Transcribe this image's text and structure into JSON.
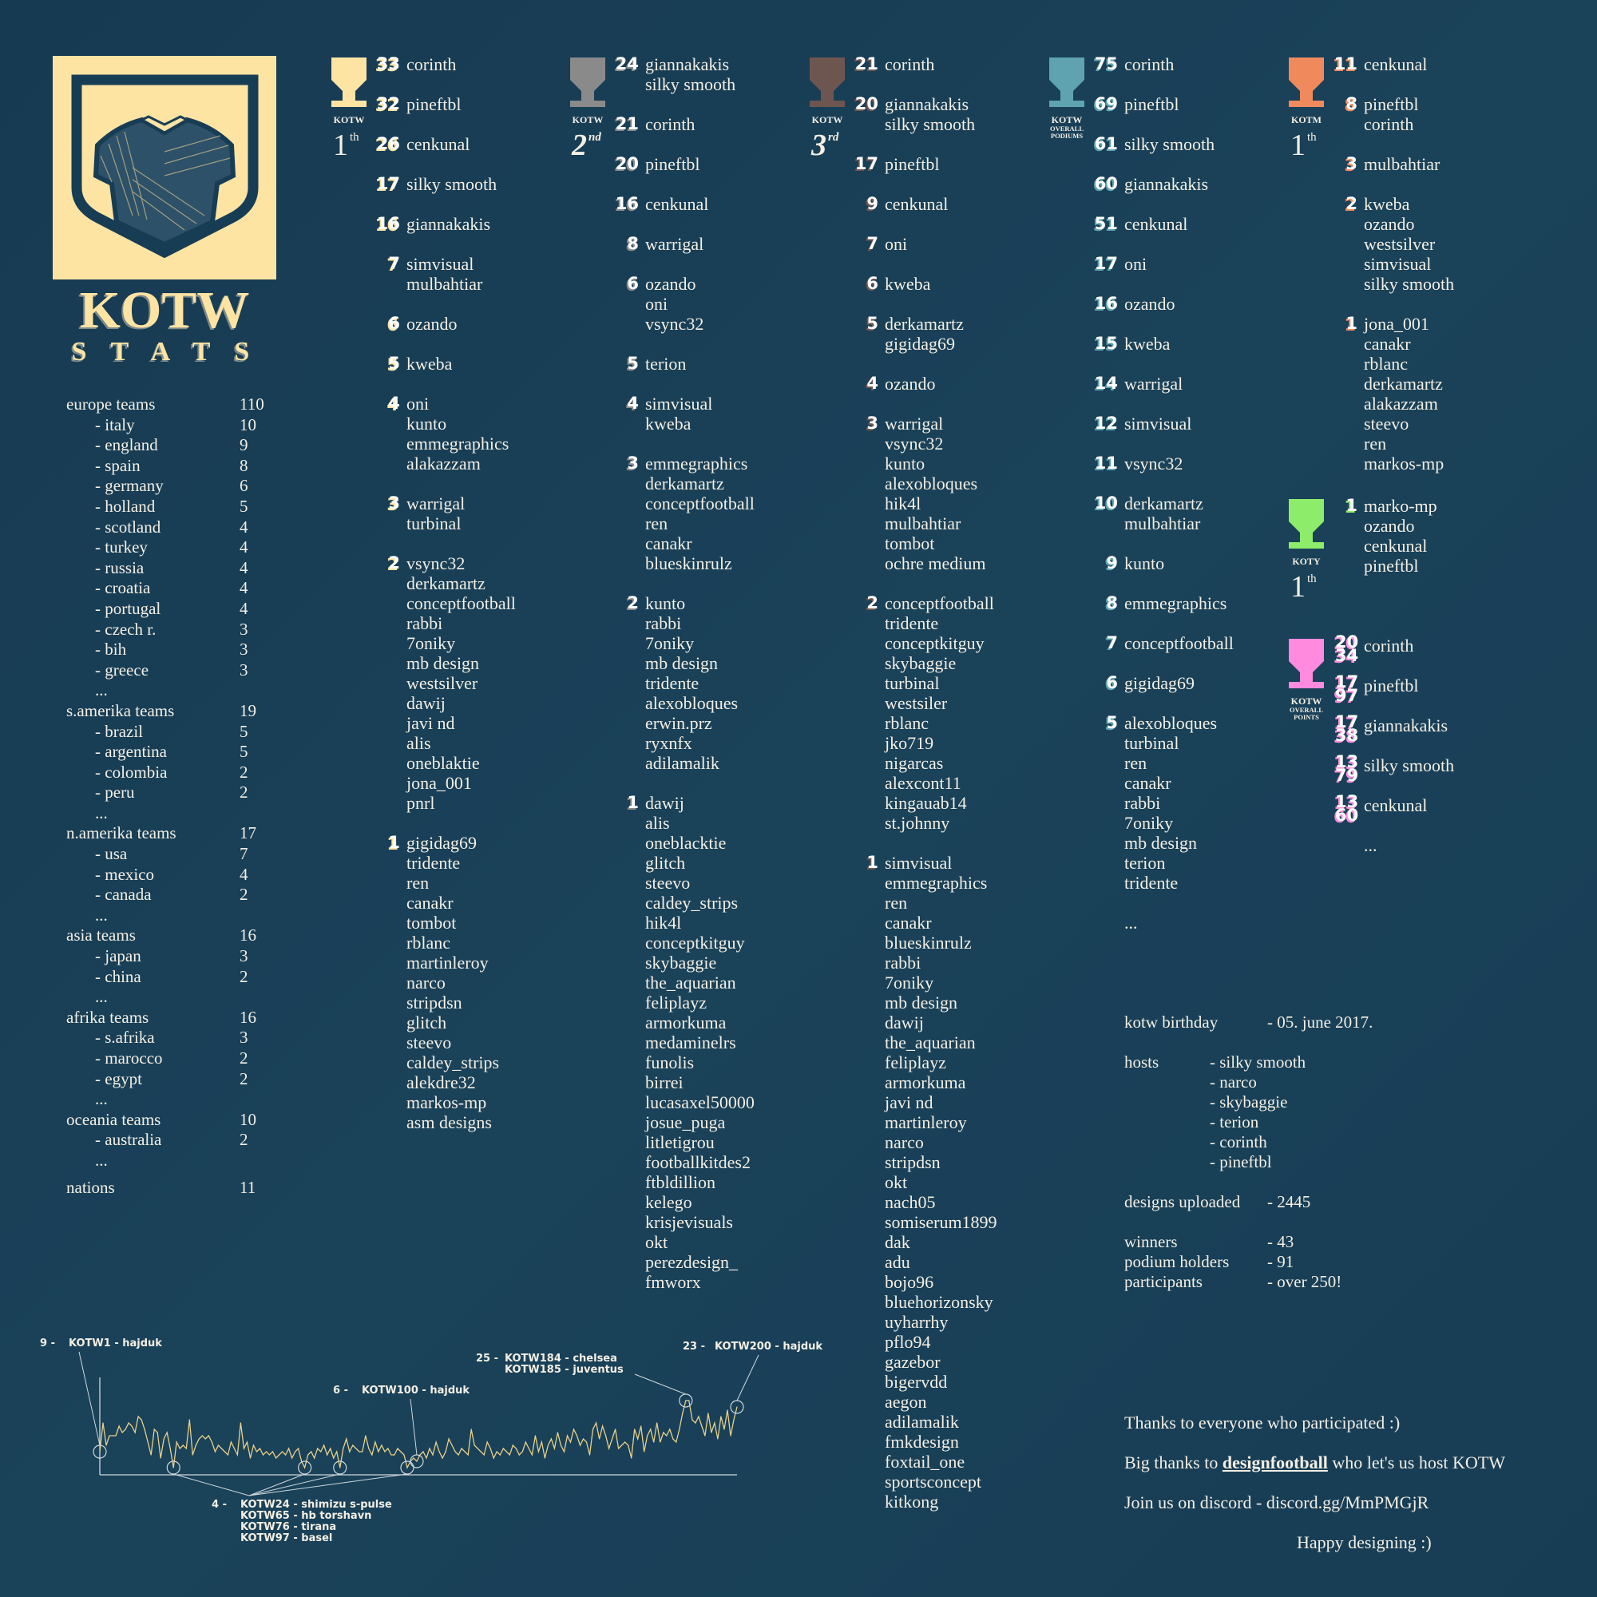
{
  "brand": {
    "logo_text": "KOTW",
    "subtitle": "STATS"
  },
  "colors": {
    "background": "#173d55",
    "cream": "#fee4a3",
    "silver": "#8a8a8a",
    "bronze": "#6e5650",
    "teal": "#5fa3b0",
    "orange": "#f08a5d",
    "green": "#8ded6b",
    "pink": "#ff8ade",
    "chart_line": "#e8d08a"
  },
  "stats": {
    "regions": [
      {
        "label": "europe teams",
        "value": "110",
        "countries": [
          {
            "name": "- italy",
            "value": "10"
          },
          {
            "name": "- england",
            "value": "9"
          },
          {
            "name": "- spain",
            "value": "8"
          },
          {
            "name": "- germany",
            "value": "6"
          },
          {
            "name": "- holland",
            "value": "5"
          },
          {
            "name": "- scotland",
            "value": "4"
          },
          {
            "name": "- turkey",
            "value": "4"
          },
          {
            "name": "- russia",
            "value": "4"
          },
          {
            "name": "- croatia",
            "value": "4"
          },
          {
            "name": "- portugal",
            "value": "4"
          },
          {
            "name": "- czech r.",
            "value": "3"
          },
          {
            "name": "- bih",
            "value": "3"
          },
          {
            "name": "- greece",
            "value": "3"
          }
        ],
        "more": "..."
      },
      {
        "label": "s.amerika teams",
        "value": "19",
        "countries": [
          {
            "name": "- brazil",
            "value": "5"
          },
          {
            "name": "- argentina",
            "value": "5"
          },
          {
            "name": "- colombia",
            "value": "2"
          },
          {
            "name": "- peru",
            "value": "2"
          }
        ],
        "more": "..."
      },
      {
        "label": "n.amerika teams",
        "value": "17",
        "countries": [
          {
            "name": "- usa",
            "value": "7"
          },
          {
            "name": "- mexico",
            "value": "4"
          },
          {
            "name": "- canada",
            "value": "2"
          }
        ],
        "more": "..."
      },
      {
        "label": "asia teams",
        "value": "16",
        "countries": [
          {
            "name": "- japan",
            "value": "3"
          },
          {
            "name": "- china",
            "value": "2"
          }
        ],
        "more": "..."
      },
      {
        "label": "afrika teams",
        "value": "16",
        "countries": [
          {
            "name": "- s.afrika",
            "value": "3"
          },
          {
            "name": "- marocco",
            "value": "2"
          },
          {
            "name": "- egypt",
            "value": "2"
          }
        ],
        "more": "..."
      },
      {
        "label": "oceania teams",
        "value": "10",
        "countries": [
          {
            "name": "- australia",
            "value": "2"
          }
        ],
        "more": "..."
      }
    ],
    "nations_label": "nations",
    "nations_value": "11"
  },
  "sections": [
    {
      "id": "kotw-1st",
      "color": "#fee4a3",
      "label": [
        "KOTW"
      ],
      "place": "1",
      "place_sup": "th",
      "groups": [
        {
          "n": "33",
          "names": [
            "corinth"
          ]
        },
        {
          "n": "32",
          "names": [
            "pineftbl"
          ]
        },
        {
          "n": "26",
          "names": [
            "cenkunal"
          ]
        },
        {
          "n": "17",
          "names": [
            "silky smooth"
          ]
        },
        {
          "n": "16",
          "names": [
            "giannakakis"
          ]
        },
        {
          "n": "7",
          "names": [
            "simvisual",
            "mulbahtiar"
          ]
        },
        {
          "n": "6",
          "names": [
            "ozando"
          ]
        },
        {
          "n": "5",
          "names": [
            "kweba"
          ]
        },
        {
          "n": "4",
          "names": [
            "oni",
            "kunto",
            "emmegraphics",
            "alakazzam"
          ]
        },
        {
          "n": "3",
          "names": [
            "warrigal",
            "turbinal"
          ]
        },
        {
          "n": "2",
          "names": [
            "vsync32",
            "derkamartz",
            "conceptfootball",
            "rabbi",
            "7oniky",
            "mb design",
            "westsilver",
            "dawij",
            "javi nd",
            "alis",
            "oneblaktie",
            "jona_001",
            "pnrl"
          ]
        },
        {
          "n": "1",
          "names": [
            "gigidag69",
            "tridente",
            "ren",
            "canakr",
            "tombot",
            "rblanc",
            "martinleroy",
            "narco",
            "stripdsn",
            "glitch",
            "steevo",
            "caldey_strips",
            "alekdre32",
            "markos-mp",
            "asm designs"
          ]
        }
      ]
    },
    {
      "id": "kotw-2nd",
      "color": "#8a8a8a",
      "label": [
        "KOTW"
      ],
      "place": "2",
      "place_sup": "nd",
      "groups": [
        {
          "n": "24",
          "names": [
            "giannakakis",
            "silky smooth"
          ]
        },
        {
          "n": "21",
          "names": [
            "corinth"
          ]
        },
        {
          "n": "20",
          "names": [
            "pineftbl"
          ]
        },
        {
          "n": "16",
          "names": [
            "cenkunal"
          ]
        },
        {
          "n": "8",
          "names": [
            "warrigal"
          ]
        },
        {
          "n": "6",
          "names": [
            "ozando",
            "oni",
            "vsync32"
          ]
        },
        {
          "n": "5",
          "names": [
            "terion"
          ]
        },
        {
          "n": "4",
          "names": [
            "simvisual",
            "kweba"
          ]
        },
        {
          "n": "3",
          "names": [
            "emmegraphics",
            "derkamartz",
            "conceptfootball",
            "ren",
            "canakr",
            "blueskinrulz"
          ]
        },
        {
          "n": "2",
          "names": [
            "kunto",
            "rabbi",
            "7oniky",
            "mb design",
            "tridente",
            "alexobloques",
            "erwin.prz",
            "ryxnfx",
            "adilamalik"
          ]
        },
        {
          "n": "1",
          "names": [
            "dawij",
            "alis",
            "oneblacktie",
            "glitch",
            "steevo",
            "caldey_strips",
            "hik4l",
            "conceptkitguy",
            "skybaggie",
            "the_aquarian",
            "feliplayz",
            "armorkuma",
            "medaminelrs",
            "funolis",
            "birrei",
            "lucasaxel50000",
            "josue_puga",
            "litletigrou",
            "footballkitdes2",
            "ftbldillion",
            "kelego",
            "krisjevisuals",
            "okt",
            "perezdesign_",
            "fmworx"
          ]
        }
      ]
    },
    {
      "id": "kotw-3rd",
      "color": "#6e5650",
      "label": [
        "KOTW"
      ],
      "place": "3",
      "place_sup": "rd",
      "groups": [
        {
          "n": "21",
          "names": [
            "corinth"
          ]
        },
        {
          "n": "20",
          "names": [
            "giannakakis",
            "silky smooth"
          ]
        },
        {
          "n": "17",
          "names": [
            "pineftbl"
          ]
        },
        {
          "n": "9",
          "names": [
            "cenkunal"
          ]
        },
        {
          "n": "7",
          "names": [
            "oni"
          ]
        },
        {
          "n": "6",
          "names": [
            "kweba"
          ]
        },
        {
          "n": "5",
          "names": [
            "derkamartz",
            "gigidag69"
          ]
        },
        {
          "n": "4",
          "names": [
            "ozando"
          ]
        },
        {
          "n": "3",
          "names": [
            "warrigal",
            "vsync32",
            "kunto",
            "alexobloques",
            "hik4l",
            "mulbahtiar",
            "tombot",
            "ochre medium"
          ]
        },
        {
          "n": "2",
          "names": [
            "conceptfootball",
            "tridente",
            "conceptkitguy",
            "skybaggie",
            "turbinal",
            "westsiler",
            "rblanc",
            "jko719",
            "nigarcas",
            "alexcont11",
            "kingauab14",
            "st.johnny"
          ]
        },
        {
          "n": "1",
          "names": [
            "simvisual",
            "emmegraphics",
            "ren",
            "canakr",
            "blueskinrulz",
            "rabbi",
            "7oniky",
            "mb design",
            "dawij",
            "the_aquarian",
            "feliplayz",
            "armorkuma",
            "javi nd",
            "martinleroy",
            "narco",
            "stripdsn",
            "okt",
            "nach05",
            "somiserum1899",
            "dak",
            "adu",
            "bojo96",
            "bluehorizonsky",
            "uyharrhy",
            "pflo94",
            "gazebor",
            "bigervdd",
            "aegon",
            "adilamalik",
            "fmkdesign",
            "foxtail_one",
            "sportsconcept",
            "kitkong"
          ]
        }
      ]
    },
    {
      "id": "kotw-overall-podiums",
      "color": "#5fa3b0",
      "label": [
        "KOTW",
        "OVERALL",
        "PODIUMS"
      ],
      "groups": [
        {
          "n": "75",
          "names": [
            "corinth"
          ]
        },
        {
          "n": "69",
          "names": [
            "pineftbl"
          ]
        },
        {
          "n": "61",
          "names": [
            "silky smooth"
          ]
        },
        {
          "n": "60",
          "names": [
            "giannakakis"
          ]
        },
        {
          "n": "51",
          "names": [
            "cenkunal"
          ]
        },
        {
          "n": "17",
          "names": [
            "oni"
          ]
        },
        {
          "n": "16",
          "names": [
            "ozando"
          ]
        },
        {
          "n": "15",
          "names": [
            "kweba"
          ]
        },
        {
          "n": "14",
          "names": [
            "warrigal"
          ]
        },
        {
          "n": "12",
          "names": [
            "simvisual"
          ]
        },
        {
          "n": "11",
          "names": [
            "vsync32"
          ]
        },
        {
          "n": "10",
          "names": [
            "derkamartz",
            "mulbahtiar"
          ]
        },
        {
          "n": "9",
          "names": [
            "kunto"
          ]
        },
        {
          "n": "8",
          "names": [
            "emmegraphics"
          ]
        },
        {
          "n": "7",
          "names": [
            "conceptfootball"
          ]
        },
        {
          "n": "6",
          "names": [
            "gigidag69"
          ]
        },
        {
          "n": "5",
          "names": [
            "alexobloques",
            "turbinal",
            "ren",
            "canakr",
            "rabbi",
            "7oniky",
            "mb design",
            "terion",
            "tridente"
          ]
        },
        {
          "n": null,
          "names": [
            "..."
          ]
        }
      ]
    },
    {
      "id": "kotm-1st",
      "color": "#f08a5d",
      "label": [
        "KOTM"
      ],
      "place": "1",
      "place_sup": "th",
      "groups": [
        {
          "n": "11",
          "names": [
            "cenkunal"
          ]
        },
        {
          "n": "8",
          "names": [
            "pineftbl",
            "corinth"
          ]
        },
        {
          "n": "3",
          "names": [
            "mulbahtiar"
          ]
        },
        {
          "n": "2",
          "names": [
            "kweba",
            "ozando",
            "westsilver",
            "simvisual",
            "silky smooth"
          ]
        },
        {
          "n": "1",
          "names": [
            "jona_001",
            "canakr",
            "rblanc",
            "derkamartz",
            "alakazzam",
            "steevo",
            "ren",
            "markos-mp"
          ]
        }
      ]
    },
    {
      "id": "koty-1st",
      "color": "#8ded6b",
      "label": [
        "KOTY"
      ],
      "place": "1",
      "place_sup": "th",
      "groups": [
        {
          "n": "1",
          "names": [
            "marko-mp",
            "ozando",
            "cenkunal",
            "pineftbl"
          ]
        }
      ]
    },
    {
      "id": "kotw-overall-points",
      "color": "#ff8ade",
      "label": [
        "KOTW",
        "OVERALL",
        "POINTS"
      ],
      "groups": [
        {
          "n": "2034",
          "names": [
            "corinth"
          ]
        },
        {
          "n": "1797",
          "names": [
            "pineftbl"
          ]
        },
        {
          "n": "1738",
          "names": [
            "giannakakis"
          ]
        },
        {
          "n": "1379",
          "names": [
            "silky smooth"
          ]
        },
        {
          "n": "1360",
          "names": [
            "cenkunal"
          ]
        },
        {
          "n": null,
          "names": [
            "..."
          ]
        }
      ]
    }
  ],
  "info": {
    "birthday_label": "kotw birthday",
    "birthday_value": "- 05. june 2017.",
    "hosts_label": "hosts",
    "hosts": [
      "- silky smooth",
      "- narco",
      "- skybaggie",
      "- terion",
      "- corinth",
      "- pineftbl"
    ],
    "designs_label": "designs uploaded",
    "designs_value": "- 2445",
    "winners_label": "winners",
    "winners_value": "- 43",
    "podium_label": "podium holders",
    "podium_value": "- 91",
    "participants_label": "participants",
    "participants_value": "- over 250!"
  },
  "thanks": {
    "line1": "Thanks to everyone who participated :)",
    "line2_pre": "Big thanks to ",
    "line2_link": "designfootball",
    "line2_post": " who let's us host KOTW",
    "line3": "Join us on discord - discord.gg/MmPMGjR",
    "line4": "Happy designing :)"
  },
  "chart_data": {
    "type": "line",
    "title": "",
    "xlabel": "",
    "ylabel": "",
    "x_range": [
      1,
      200
    ],
    "ylim": [
      2,
      32
    ],
    "grid": false,
    "axis_ticks": false,
    "x": "KOTW week 1..200",
    "values": [
      9,
      18,
      11,
      14,
      14,
      14,
      17,
      15,
      16,
      18,
      17,
      15,
      20,
      19,
      16,
      12,
      8,
      16,
      15,
      7,
      13,
      15,
      10,
      4,
      12,
      10,
      11,
      10,
      19,
      8,
      11,
      13,
      14,
      13,
      14,
      12,
      9,
      11,
      10,
      9,
      8,
      12,
      10,
      8,
      18,
      10,
      12,
      7,
      11,
      9,
      10,
      8,
      9,
      8,
      9,
      7,
      8,
      9,
      8,
      10,
      7,
      9,
      10,
      6,
      4,
      8,
      9,
      7,
      10,
      9,
      11,
      8,
      10,
      7,
      9,
      4,
      10,
      13,
      9,
      11,
      10,
      9,
      9,
      14,
      10,
      8,
      12,
      9,
      11,
      9,
      10,
      8,
      8,
      10,
      9,
      8,
      4,
      6,
      7,
      6,
      8,
      9,
      7,
      10,
      8,
      12,
      9,
      7,
      9,
      13,
      11,
      9,
      8,
      10,
      9,
      8,
      16,
      11,
      10,
      9,
      8,
      12,
      10,
      7,
      9,
      8,
      10,
      9,
      8,
      11,
      10,
      8,
      9,
      12,
      10,
      8,
      14,
      9,
      12,
      7,
      11,
      13,
      10,
      15,
      11,
      9,
      14,
      12,
      16,
      14,
      11,
      13,
      12,
      8,
      16,
      18,
      13,
      17,
      14,
      10,
      13,
      16,
      10,
      11,
      12,
      11,
      7,
      16,
      13,
      17,
      9,
      14,
      16,
      12,
      18,
      12,
      15,
      14,
      16,
      13,
      12,
      16,
      21,
      25,
      25,
      19,
      18,
      20,
      17,
      14,
      21,
      15,
      18,
      13,
      20,
      16,
      22,
      14,
      19,
      23
    ],
    "annotations": [
      {
        "value_label": "9 -",
        "weeks": [
          1
        ],
        "entries": [
          "KOTW1 - hajduk"
        ]
      },
      {
        "value_label": "4 -",
        "weeks": [
          24,
          65,
          76,
          97
        ],
        "entries": [
          "KOTW24 - shimizu s-pulse",
          "KOTW65 - hb torshavn",
          "KOTW76 - tirana",
          "KOTW97 - basel"
        ]
      },
      {
        "value_label": "6 -",
        "weeks": [
          100
        ],
        "entries": [
          "KOTW100 - hajduk"
        ]
      },
      {
        "value_label": "25 -",
        "weeks": [
          184
        ],
        "entries": [
          "KOTW184 - chelsea",
          "KOTW185 - juventus"
        ]
      },
      {
        "value_label": "23 -",
        "weeks": [
          200
        ],
        "entries": [
          "KOTW200 - hajduk"
        ]
      }
    ]
  }
}
